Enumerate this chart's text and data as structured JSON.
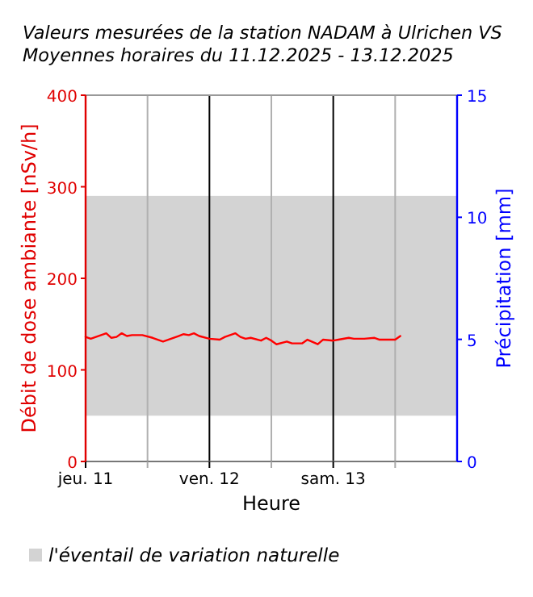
{
  "chart_data": {
    "type": "line",
    "title": "Valeurs mesurées de la station NADAM à Ulrichen VS",
    "subtitle": "Moyennes horaires du 11.12.2025 - 13.12.2025",
    "xlabel": "Heure",
    "ylabel": "Débit de dose ambiante [nSv/h]",
    "y2label": "Précipitation [mm]",
    "x": [
      "2025-12-11T00:00",
      "2025-12-11T01:00",
      "2025-12-11T02:00",
      "2025-12-11T04:00",
      "2025-12-11T05:00",
      "2025-12-11T06:00",
      "2025-12-11T07:00",
      "2025-12-11T08:00",
      "2025-12-11T09:00",
      "2025-12-11T11:00",
      "2025-12-11T13:00",
      "2025-12-11T15:00",
      "2025-12-11T16:00",
      "2025-12-11T18:00",
      "2025-12-11T19:00",
      "2025-12-11T20:00",
      "2025-12-11T21:00",
      "2025-12-11T22:00",
      "2025-12-12T00:00",
      "2025-12-12T02:00",
      "2025-12-12T03:00",
      "2025-12-12T05:00",
      "2025-12-12T06:00",
      "2025-12-12T07:00",
      "2025-12-12T08:00",
      "2025-12-12T10:00",
      "2025-12-12T11:00",
      "2025-12-12T12:00",
      "2025-12-12T13:00",
      "2025-12-12T15:00",
      "2025-12-12T16:00",
      "2025-12-12T18:00",
      "2025-12-12T19:00",
      "2025-12-12T21:00",
      "2025-12-12T22:00",
      "2025-12-13T00:00",
      "2025-12-13T01:00",
      "2025-12-13T03:00",
      "2025-12-13T04:00",
      "2025-12-13T06:00",
      "2025-12-13T08:00",
      "2025-12-13T09:00",
      "2025-12-13T12:00",
      "2025-12-13T13:00"
    ],
    "series": [
      {
        "color": "#ff0000",
        "values": [
          136,
          134,
          136,
          140,
          135,
          136,
          140,
          137,
          138,
          138,
          135,
          131,
          133,
          137,
          139,
          138,
          140,
          137,
          134,
          133,
          136,
          140,
          136,
          134,
          135,
          132,
          135,
          132,
          128,
          131,
          129,
          129,
          133,
          128,
          133,
          132,
          133,
          135,
          134,
          134,
          135,
          133,
          133,
          137
        ]
      }
    ],
    "xlim": [
      "2025-12-11",
      "2025-12-14"
    ],
    "xticks": [
      {
        "value": "2025-12-11",
        "label": "jeu. 11"
      },
      {
        "value": "2025-12-11T12:00",
        "label": null
      },
      {
        "value": "2025-12-12",
        "label": "ven. 12"
      },
      {
        "value": "2025-12-12T12:00",
        "label": null
      },
      {
        "value": "2025-12-13",
        "label": "sam. 13"
      },
      {
        "value": "2025-12-13T12:00",
        "label": null
      }
    ],
    "ylim": [
      0,
      400
    ],
    "yticks": [
      0,
      100,
      200,
      300,
      400
    ],
    "y2lim": [
      0,
      15
    ],
    "y2ticks": [
      0,
      5,
      10,
      15
    ],
    "bands": [
      {
        "axis": "y",
        "from": 50,
        "to": 290,
        "label": "l'éventail de variation naturelle",
        "color": "#d3d3d3"
      }
    ],
    "grid": "x",
    "legend": "bottom",
    "marker": "none",
    "line_style": "solid"
  }
}
